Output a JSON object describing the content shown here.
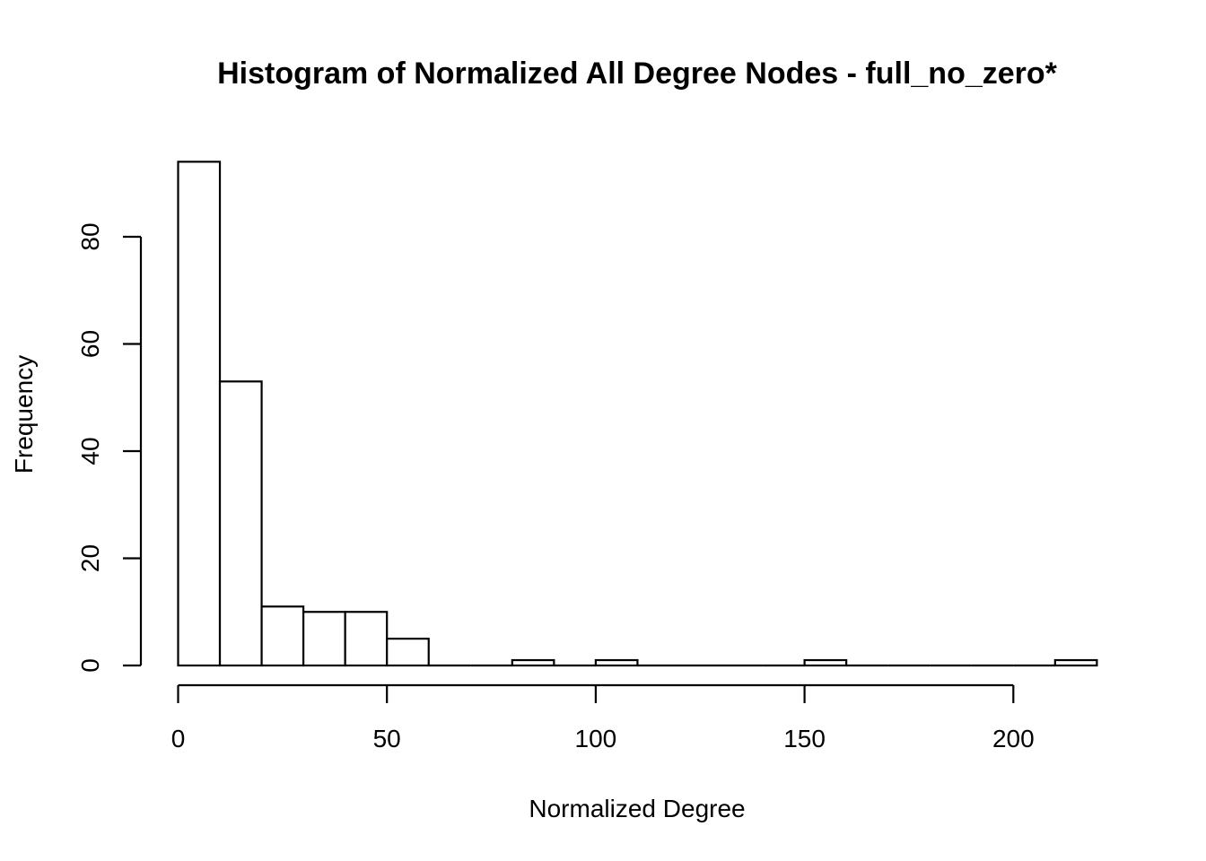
{
  "chart_data": {
    "type": "bar",
    "title": "Histogram of Normalized All Degree Nodes - full_no_zero*",
    "xlabel": "Normalized Degree",
    "ylabel": "Frequency",
    "bin_width": 10,
    "bins": [
      {
        "start": 0,
        "end": 10,
        "count": 94
      },
      {
        "start": 10,
        "end": 20,
        "count": 53
      },
      {
        "start": 20,
        "end": 30,
        "count": 11
      },
      {
        "start": 30,
        "end": 40,
        "count": 10
      },
      {
        "start": 40,
        "end": 50,
        "count": 10
      },
      {
        "start": 50,
        "end": 60,
        "count": 5
      },
      {
        "start": 60,
        "end": 70,
        "count": 0
      },
      {
        "start": 70,
        "end": 80,
        "count": 0
      },
      {
        "start": 80,
        "end": 90,
        "count": 1
      },
      {
        "start": 90,
        "end": 100,
        "count": 0
      },
      {
        "start": 100,
        "end": 110,
        "count": 1
      },
      {
        "start": 110,
        "end": 120,
        "count": 0
      },
      {
        "start": 120,
        "end": 130,
        "count": 0
      },
      {
        "start": 130,
        "end": 140,
        "count": 0
      },
      {
        "start": 140,
        "end": 150,
        "count": 0
      },
      {
        "start": 150,
        "end": 160,
        "count": 1
      },
      {
        "start": 160,
        "end": 170,
        "count": 0
      },
      {
        "start": 170,
        "end": 180,
        "count": 0
      },
      {
        "start": 180,
        "end": 190,
        "count": 0
      },
      {
        "start": 190,
        "end": 200,
        "count": 0
      },
      {
        "start": 200,
        "end": 210,
        "count": 0
      },
      {
        "start": 210,
        "end": 220,
        "count": 1
      }
    ],
    "x_ticks": [
      "0",
      "50",
      "100",
      "150",
      "200"
    ],
    "y_ticks": [
      "0",
      "20",
      "40",
      "60",
      "80"
    ],
    "xlim": [
      0,
      220
    ],
    "ylim": [
      0,
      94
    ],
    "grid": false,
    "legend": "none"
  }
}
